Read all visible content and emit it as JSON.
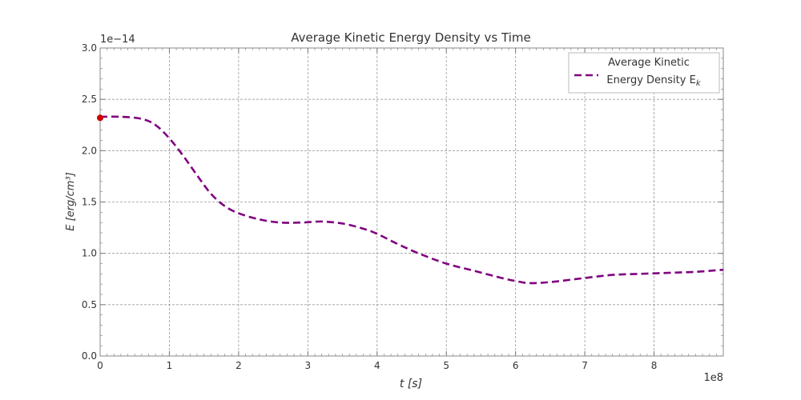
{
  "chart_data": {
    "type": "line",
    "title": "Average Kinetic Energy Density vs Time",
    "xlabel": "t [s]",
    "ylabel": "E [erg/cm³]",
    "x_multiplier": "1e8",
    "y_multiplier": "1e−14",
    "xlim": [
      0,
      9
    ],
    "ylim": [
      0.0,
      3.0
    ],
    "xticks": [
      "0",
      "1",
      "2",
      "3",
      "4",
      "5",
      "6",
      "7",
      "8"
    ],
    "yticks": [
      "0.0",
      "0.5",
      "1.0",
      "1.5",
      "2.0",
      "2.5",
      "3.0"
    ],
    "grid": true,
    "legend_position": "top-right",
    "series": [
      {
        "name": "Average Kinetic Energy Density Ek",
        "legend_lines": [
          "Average Kinetic",
          "Energy Density E"
        ],
        "legend_subscript": "k",
        "color": "#800080",
        "linestyle": "dashed",
        "x": [
          0,
          0.3,
          0.6,
          0.8,
          1.0,
          1.2,
          1.4,
          1.6,
          1.8,
          2.0,
          2.3,
          2.6,
          2.9,
          3.2,
          3.5,
          3.8,
          4.0,
          4.3,
          4.6,
          5.0,
          5.4,
          5.8,
          6.0,
          6.2,
          6.5,
          7.0,
          7.4,
          7.8,
          8.2,
          8.6,
          9.0
        ],
        "y": [
          2.33,
          2.33,
          2.31,
          2.25,
          2.12,
          1.95,
          1.76,
          1.58,
          1.46,
          1.39,
          1.33,
          1.3,
          1.3,
          1.31,
          1.29,
          1.24,
          1.19,
          1.09,
          1.0,
          0.9,
          0.83,
          0.76,
          0.73,
          0.71,
          0.72,
          0.76,
          0.79,
          0.8,
          0.81,
          0.82,
          0.84
        ]
      }
    ],
    "start_marker": {
      "x": 0,
      "y": 2.32,
      "color": "#cc0000"
    }
  }
}
